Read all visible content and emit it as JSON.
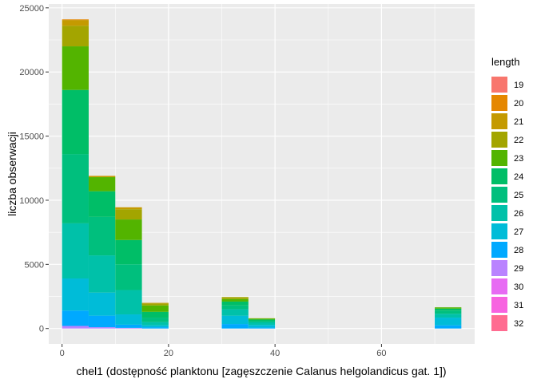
{
  "chart_data": {
    "type": "bar",
    "stacked": true,
    "xlabel": "chel1 (dostępność planktonu [zagęszczenie Calanus helgolandicus gat. 1])",
    "ylabel": "liczba obserwacji",
    "xlim": [
      -2.5,
      77.5
    ],
    "ylim": [
      -1200,
      25300
    ],
    "x_ticks": [
      0,
      20,
      40,
      60
    ],
    "x_tick_labels": [
      "0",
      "20",
      "40",
      "60"
    ],
    "y_ticks": [
      0,
      5000,
      10000,
      15000,
      20000,
      25000
    ],
    "y_tick_labels": [
      "0",
      "5000",
      "10000",
      "15000",
      "20000",
      "25000"
    ],
    "bin_width": 5,
    "bins": [
      {
        "x0": 0,
        "x1": 5
      },
      {
        "x0": 5,
        "x1": 10
      },
      {
        "x0": 10,
        "x1": 15
      },
      {
        "x0": 15,
        "x1": 20
      },
      {
        "x0": 30,
        "x1": 35
      },
      {
        "x0": 35,
        "x1": 40
      },
      {
        "x0": 70,
        "x1": 75
      }
    ],
    "grid": true,
    "background": "#ebebeb",
    "legend": {
      "title": "length",
      "placement": "right",
      "entries": [
        "19",
        "20",
        "21",
        "22",
        "23",
        "24",
        "25",
        "26",
        "27",
        "28",
        "29",
        "30",
        "31",
        "32"
      ]
    },
    "series": [
      {
        "name": "32",
        "color": "#FF6C91",
        "values": [
          0,
          0,
          0,
          0,
          0,
          0,
          0
        ]
      },
      {
        "name": "31",
        "color": "#F763E0",
        "values": [
          0,
          0,
          0,
          0,
          0,
          0,
          0
        ]
      },
      {
        "name": "30",
        "color": "#E76BF3",
        "values": [
          0,
          0,
          0,
          0,
          0,
          0,
          0
        ]
      },
      {
        "name": "29",
        "color": "#B983FF",
        "values": [
          200,
          100,
          50,
          0,
          0,
          0,
          0
        ]
      },
      {
        "name": "28",
        "color": "#00A9FF",
        "values": [
          1200,
          900,
          250,
          100,
          350,
          80,
          250
        ]
      },
      {
        "name": "27",
        "color": "#00BCD8",
        "values": [
          2500,
          1800,
          800,
          150,
          650,
          200,
          600
        ]
      },
      {
        "name": "26",
        "color": "#00C1A9",
        "values": [
          4300,
          2900,
          1900,
          250,
          500,
          200,
          300
        ]
      },
      {
        "name": "25",
        "color": "#00BF7D",
        "values": [
          5400,
          3000,
          2000,
          350,
          300,
          120,
          250
        ]
      },
      {
        "name": "24",
        "color": "#00BE67",
        "values": [
          5000,
          2000,
          1900,
          450,
          300,
          100,
          150
        ]
      },
      {
        "name": "23",
        "color": "#53B400",
        "values": [
          3400,
          1100,
          1600,
          500,
          200,
          80,
          100
        ]
      },
      {
        "name": "22",
        "color": "#A3A500",
        "values": [
          1600,
          0,
          800,
          150,
          150,
          20,
          0
        ]
      },
      {
        "name": "21",
        "color": "#C49A00",
        "values": [
          450,
          100,
          150,
          50,
          0,
          0,
          0
        ]
      },
      {
        "name": "20",
        "color": "#E58700",
        "values": [
          50,
          0,
          0,
          0,
          0,
          0,
          0
        ]
      },
      {
        "name": "19",
        "color": "#F8766D",
        "values": [
          0,
          0,
          0,
          0,
          0,
          0,
          0
        ]
      }
    ]
  }
}
